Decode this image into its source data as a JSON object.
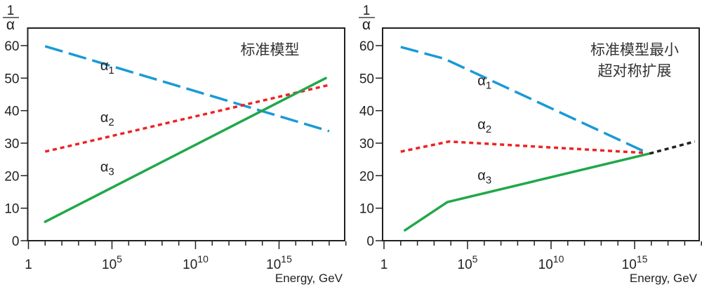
{
  "chart_data": [
    {
      "type": "line",
      "title": "标准模型",
      "ylabel_numerator": "1",
      "ylabel_denominator": "α",
      "xlabel": "Energy, GeV",
      "x_scale": "log10",
      "xlim_log10": [
        0,
        19
      ],
      "ylim": [
        0,
        65
      ],
      "x_ticks": [
        {
          "exp": 0,
          "label": "1",
          "sup": ""
        },
        {
          "exp": 5,
          "label": "10",
          "sup": "5"
        },
        {
          "exp": 10,
          "label": "10",
          "sup": "10"
        },
        {
          "exp": 15,
          "label": "10",
          "sup": "15"
        }
      ],
      "y_ticks": [
        0,
        10,
        20,
        30,
        40,
        50,
        60
      ],
      "grid": false,
      "series": [
        {
          "name": "α",
          "sub": "1",
          "color": "#1a9ad6",
          "style": "dashed",
          "x_log10": [
            1,
            18
          ],
          "y": [
            59.8,
            33.7
          ],
          "label_at": [
            4.3,
            52.5
          ]
        },
        {
          "name": "α",
          "sub": "2",
          "color": "#ed2224",
          "style": "dotted",
          "x_log10": [
            1,
            18
          ],
          "y": [
            27.4,
            47.9
          ],
          "label_at": [
            4.3,
            36.5
          ]
        },
        {
          "name": "α",
          "sub": "3",
          "color": "#20a84a",
          "style": "solid",
          "x_log10": [
            1,
            17.8
          ],
          "y": [
            5.8,
            50.0
          ],
          "label_at": [
            4.3,
            21.3
          ]
        }
      ]
    },
    {
      "type": "line",
      "title": "标准模型最小",
      "title_line2": "超对称扩展",
      "ylabel_numerator": "1",
      "ylabel_denominator": "α",
      "xlabel": "Energy, GeV",
      "x_scale": "log10",
      "xlim_log10": [
        0,
        19
      ],
      "ylim": [
        0,
        65
      ],
      "x_ticks": [
        {
          "exp": 0,
          "label": "1",
          "sup": ""
        },
        {
          "exp": 5,
          "label": "10",
          "sup": "5"
        },
        {
          "exp": 10,
          "label": "10",
          "sup": "10"
        },
        {
          "exp": 15,
          "label": "10",
          "sup": "15"
        }
      ],
      "y_ticks": [
        0,
        10,
        20,
        30,
        40,
        50,
        60
      ],
      "grid": false,
      "series": [
        {
          "name": "α",
          "sub": "1",
          "color": "#1a9ad6",
          "style": "dashed",
          "x_log10": [
            1,
            3.6,
            15.6
          ],
          "y": [
            59.6,
            56.0,
            27.4
          ],
          "label_at": [
            5.6,
            47.8
          ]
        },
        {
          "name": "α",
          "sub": "2",
          "color": "#ed2224",
          "style": "dotted",
          "x_log10": [
            1,
            3.9,
            15.6
          ],
          "y": [
            27.4,
            30.5,
            27.0
          ],
          "label_at": [
            5.6,
            34.3
          ]
        },
        {
          "name": "α",
          "sub": "3",
          "color": "#20a84a",
          "style": "solid",
          "x_log10": [
            1.25,
            3.8,
            15.9
          ],
          "y": [
            3.2,
            11.9,
            26.8
          ],
          "label_at": [
            5.6,
            18.7
          ]
        },
        {
          "name": "",
          "color": "#231f20",
          "style": "dotted",
          "x_log10": [
            15.9,
            18.6
          ],
          "y": [
            26.8,
            30.5
          ]
        }
      ]
    }
  ]
}
